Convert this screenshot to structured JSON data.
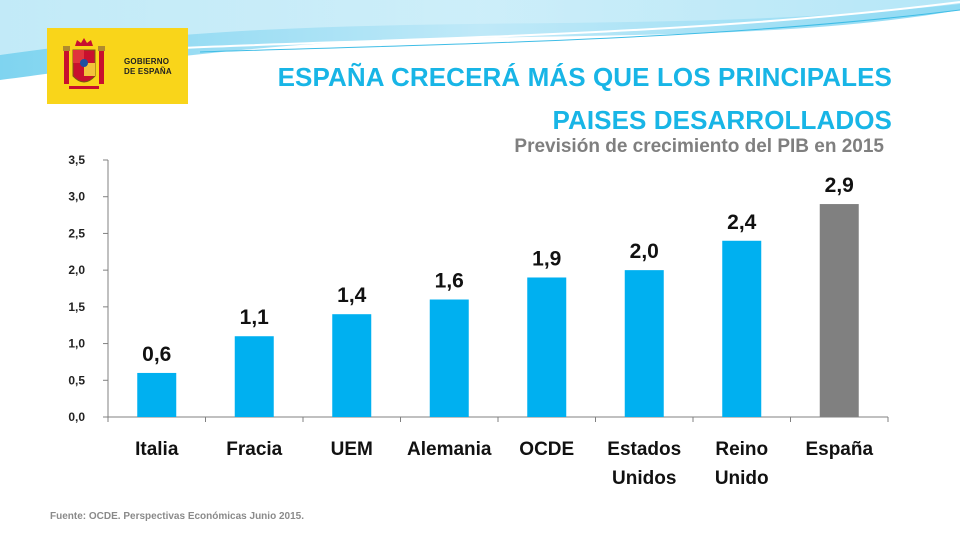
{
  "header": {
    "logo_line1": "GOBIERNO",
    "logo_line2": "DE ESPAÑA",
    "title_line1": "ESPAÑA CRECERÁ MÁS QUE LOS PRINCIPALES",
    "title_line2": "PAISES DESARROLLADOS"
  },
  "colors": {
    "accent": "#18b5e6",
    "bar": "#00b0f0",
    "highlight_bar": "#808080",
    "logo_background": "#f9d51a"
  },
  "chart_data": {
    "type": "bar",
    "title": "Previsión de crecimiento del PIB en 2015",
    "categories": [
      [
        "Italia"
      ],
      [
        "Fracia"
      ],
      [
        "UEM"
      ],
      [
        "Alemania"
      ],
      [
        "OCDE"
      ],
      [
        "Estados",
        "Unidos"
      ],
      [
        "Reino",
        "Unido"
      ],
      [
        "España"
      ]
    ],
    "values": [
      0.6,
      1.1,
      1.4,
      1.6,
      1.9,
      2.0,
      2.4,
      2.9
    ],
    "value_labels": [
      "0,6",
      "1,1",
      "1,4",
      "1,6",
      "1,9",
      "2,0",
      "2,4",
      "2,9"
    ],
    "highlight_index": 7,
    "ylim": [
      0,
      3.5
    ],
    "yticks": [
      "0,0",
      "0,5",
      "1,0",
      "1,5",
      "2,0",
      "2,5",
      "3,0",
      "3,5"
    ],
    "xlabel": "",
    "ylabel": "",
    "grid": false
  },
  "footer": {
    "source": "Fuente: OCDE. Perspectivas Económicas Junio 2015."
  }
}
